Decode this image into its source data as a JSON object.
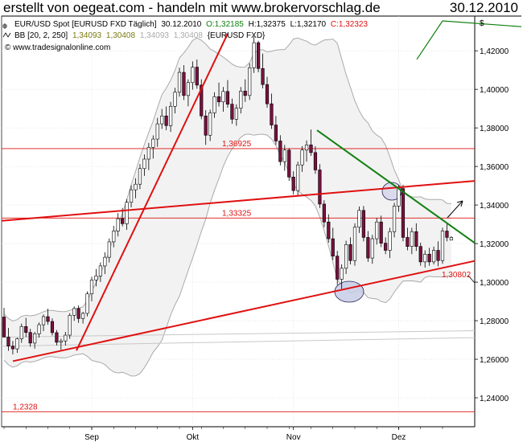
{
  "header": {
    "title": "erstellt von oegeat.com - handeln mit www.brokervorschlag.de",
    "date": "30.12.2010"
  },
  "legend": {
    "line1_name": "EUR/USD Spot [EURUSD FXD  Täglich]",
    "line1_date": "30.12.2010",
    "line1_open": "O:1,32185",
    "line1_high": "H:1,32375",
    "line1_low": "L:1,32170",
    "line1_close": "C:1,32323",
    "line2_name": "BB [20, 2, 250]",
    "line2_v1": "1,34093",
    "line2_v2": "1,30408",
    "line2_v3": "1,34093",
    "line2_v4": "1,30408",
    "line2_sym": "{EURUSD FXD}",
    "line3": "© www.tradesignalonline.com"
  },
  "colors": {
    "grid": "#d8d8d8",
    "candle_up": "#ffffff",
    "candle_down": "#7a1040",
    "trend_red": "#e01010",
    "trend_green": "#108010",
    "band": "#aaaaaa",
    "band_fill": "#f2f2f2",
    "ellipse_fill": "#c8cce8"
  },
  "chart_data": {
    "type": "candlestick",
    "x_tick_labels": [
      "Sep",
      "Okt",
      "Nov",
      "Dez"
    ],
    "y_tick_labels": [
      "1,24000",
      "1,26000",
      "1,28000",
      "1,30000",
      "1,32000",
      "1,34000",
      "1,36000",
      "1,38000",
      "1,40000",
      "1,42000"
    ],
    "ylim": [
      1.225,
      1.438
    ],
    "y_axis_symbol": "$",
    "horizontal_levels": [
      {
        "value": 1.36925,
        "label": "1,36925"
      },
      {
        "value": 1.33325,
        "label": "1,33325"
      },
      {
        "value": 1.2328,
        "label": "1,2328"
      }
    ],
    "trendline_label": "1,30802",
    "candles": [
      [
        1.2819,
        1.2867,
        1.272,
        1.2715
      ],
      [
        1.2715,
        1.2762,
        1.2644,
        1.2668
      ],
      [
        1.2668,
        1.2695,
        1.2625,
        1.2654
      ],
      [
        1.2654,
        1.2712,
        1.2633,
        1.2706
      ],
      [
        1.2706,
        1.2785,
        1.2685,
        1.277
      ],
      [
        1.277,
        1.2815,
        1.2715,
        1.2739
      ],
      [
        1.2739,
        1.2758,
        1.2665,
        1.2684
      ],
      [
        1.2684,
        1.2742,
        1.2655,
        1.2732
      ],
      [
        1.2732,
        1.2791,
        1.2712,
        1.2779
      ],
      [
        1.2779,
        1.2832,
        1.2746,
        1.2821
      ],
      [
        1.2821,
        1.2862,
        1.2779,
        1.2796
      ],
      [
        1.2796,
        1.2812,
        1.2723,
        1.2738
      ],
      [
        1.2738,
        1.2752,
        1.2672,
        1.2688
      ],
      [
        1.2688,
        1.2707,
        1.2649,
        1.2695
      ],
      [
        1.2695,
        1.2742,
        1.2671,
        1.2725
      ],
      [
        1.2725,
        1.2839,
        1.2706,
        1.2828
      ],
      [
        1.2828,
        1.2874,
        1.2799,
        1.2863
      ],
      [
        1.2863,
        1.2879,
        1.2789,
        1.2811
      ],
      [
        1.2811,
        1.2846,
        1.2785,
        1.2838
      ],
      [
        1.2838,
        1.2952,
        1.2822,
        1.2939
      ],
      [
        1.2939,
        1.3028,
        1.2901,
        1.3011
      ],
      [
        1.3011,
        1.3068,
        1.2978,
        1.3032
      ],
      [
        1.3032,
        1.3102,
        1.3001,
        1.3084
      ],
      [
        1.3084,
        1.3155,
        1.3042,
        1.3129
      ],
      [
        1.3129,
        1.3227,
        1.3102,
        1.3209
      ],
      [
        1.3209,
        1.3292,
        1.3181,
        1.3265
      ],
      [
        1.3265,
        1.3358,
        1.3237,
        1.3329
      ],
      [
        1.3329,
        1.3385,
        1.3289,
        1.3303
      ],
      [
        1.3303,
        1.3431,
        1.3271,
        1.3414
      ],
      [
        1.3414,
        1.3502,
        1.3388,
        1.3479
      ],
      [
        1.3479,
        1.3539,
        1.3435,
        1.3508
      ],
      [
        1.3508,
        1.3612,
        1.3482,
        1.3589
      ],
      [
        1.3589,
        1.3662,
        1.3551,
        1.3638
      ],
      [
        1.3638,
        1.3722,
        1.3581,
        1.3699
      ],
      [
        1.3699,
        1.3761,
        1.3641,
        1.3742
      ],
      [
        1.3742,
        1.3852,
        1.3702,
        1.3821
      ],
      [
        1.3821,
        1.3898,
        1.3795,
        1.3862
      ],
      [
        1.3862,
        1.3911,
        1.3788,
        1.3812
      ],
      [
        1.3812,
        1.3935,
        1.3779,
        1.3912
      ],
      [
        1.3912,
        1.4008,
        1.3875,
        1.3985
      ],
      [
        1.3985,
        1.4112,
        1.3962,
        1.4088
      ],
      [
        1.4088,
        1.4125,
        1.3945,
        1.3968
      ],
      [
        1.3968,
        1.4052,
        1.3912,
        1.4035
      ],
      [
        1.4035,
        1.4145,
        1.3998,
        1.4115
      ],
      [
        1.4115,
        1.4155,
        1.4003,
        1.4022
      ],
      [
        1.4022,
        1.4052,
        1.3845,
        1.3862
      ],
      [
        1.3862,
        1.3892,
        1.3712,
        1.3762
      ],
      [
        1.3762,
        1.3895,
        1.3732,
        1.3878
      ],
      [
        1.3878,
        1.3985,
        1.3852,
        1.3962
      ],
      [
        1.3962,
        1.4035,
        1.3911,
        1.3935
      ],
      [
        1.3935,
        1.4012,
        1.3884,
        1.3989
      ],
      [
        1.3989,
        1.4048,
        1.3905,
        1.3923
      ],
      [
        1.3923,
        1.3952,
        1.3821,
        1.3845
      ],
      [
        1.3845,
        1.3922,
        1.3811,
        1.3902
      ],
      [
        1.3902,
        1.4012,
        1.3875,
        1.3991
      ],
      [
        1.3991,
        1.4052,
        1.3935,
        1.3968
      ],
      [
        1.3968,
        1.4135,
        1.3945,
        1.4112
      ],
      [
        1.4112,
        1.4275,
        1.4085,
        1.4242
      ],
      [
        1.4242,
        1.4252,
        1.4088,
        1.4108
      ],
      [
        1.4108,
        1.4185,
        1.4005,
        1.4025
      ],
      [
        1.4025,
        1.4065,
        1.3905,
        1.3925
      ],
      [
        1.3925,
        1.3978,
        1.3795,
        1.3815
      ],
      [
        1.3815,
        1.3862,
        1.3712,
        1.3732
      ],
      [
        1.3732,
        1.3762,
        1.3605,
        1.3625
      ],
      [
        1.3625,
        1.3712,
        1.3578,
        1.3685
      ],
      [
        1.3685,
        1.3695,
        1.3525,
        1.3545
      ],
      [
        1.3545,
        1.3575,
        1.3455,
        1.3475
      ],
      [
        1.3475,
        1.3625,
        1.3451,
        1.3608
      ],
      [
        1.3608,
        1.3705,
        1.3572,
        1.3685
      ],
      [
        1.3685,
        1.3735,
        1.3625,
        1.3712
      ],
      [
        1.3712,
        1.3792,
        1.3655,
        1.3672
      ],
      [
        1.3672,
        1.3705,
        1.3562,
        1.3582
      ],
      [
        1.3582,
        1.3612,
        1.3385,
        1.3405
      ],
      [
        1.3405,
        1.3425,
        1.3285,
        1.3312
      ],
      [
        1.3312,
        1.3352,
        1.3205,
        1.3225
      ],
      [
        1.3225,
        1.3282,
        1.3115,
        1.3135
      ],
      [
        1.3135,
        1.3162,
        1.2985,
        1.3015
      ],
      [
        1.3015,
        1.3092,
        1.2965,
        1.3072
      ],
      [
        1.3072,
        1.3215,
        1.3042,
        1.3195
      ],
      [
        1.3195,
        1.3232,
        1.3092,
        1.3112
      ],
      [
        1.3112,
        1.3305,
        1.3085,
        1.3285
      ],
      [
        1.3285,
        1.3392,
        1.3255,
        1.3372
      ],
      [
        1.3372,
        1.3395,
        1.3212,
        1.3232
      ],
      [
        1.3232,
        1.3265,
        1.3105,
        1.3125
      ],
      [
        1.3125,
        1.3245,
        1.3095,
        1.3225
      ],
      [
        1.3225,
        1.3332,
        1.3195,
        1.3312
      ],
      [
        1.3312,
        1.3345,
        1.3182,
        1.3202
      ],
      [
        1.3202,
        1.3232,
        1.3145,
        1.3165
      ],
      [
        1.3165,
        1.3282,
        1.3125,
        1.3262
      ],
      [
        1.3262,
        1.3412,
        1.3232,
        1.3395
      ],
      [
        1.3395,
        1.3502,
        1.3365,
        1.3485
      ],
      [
        1.3485,
        1.3505,
        1.3212,
        1.3232
      ],
      [
        1.3232,
        1.3282,
        1.3165,
        1.3185
      ],
      [
        1.3185,
        1.3282,
        1.3145,
        1.3262
      ],
      [
        1.3262,
        1.3305,
        1.3162,
        1.3185
      ],
      [
        1.3185,
        1.3205,
        1.3085,
        1.3105
      ],
      [
        1.3105,
        1.3165,
        1.3075,
        1.3145
      ],
      [
        1.3145,
        1.3178,
        1.3085,
        1.3105
      ],
      [
        1.3105,
        1.3185,
        1.3092,
        1.3165
      ],
      [
        1.3165,
        1.3212,
        1.3082,
        1.3112
      ],
      [
        1.3112,
        1.3282,
        1.3095,
        1.3265
      ],
      [
        1.3265,
        1.3302,
        1.3212,
        1.3232
      ],
      [
        1.3218,
        1.3238,
        1.3217,
        1.3232
      ]
    ]
  }
}
